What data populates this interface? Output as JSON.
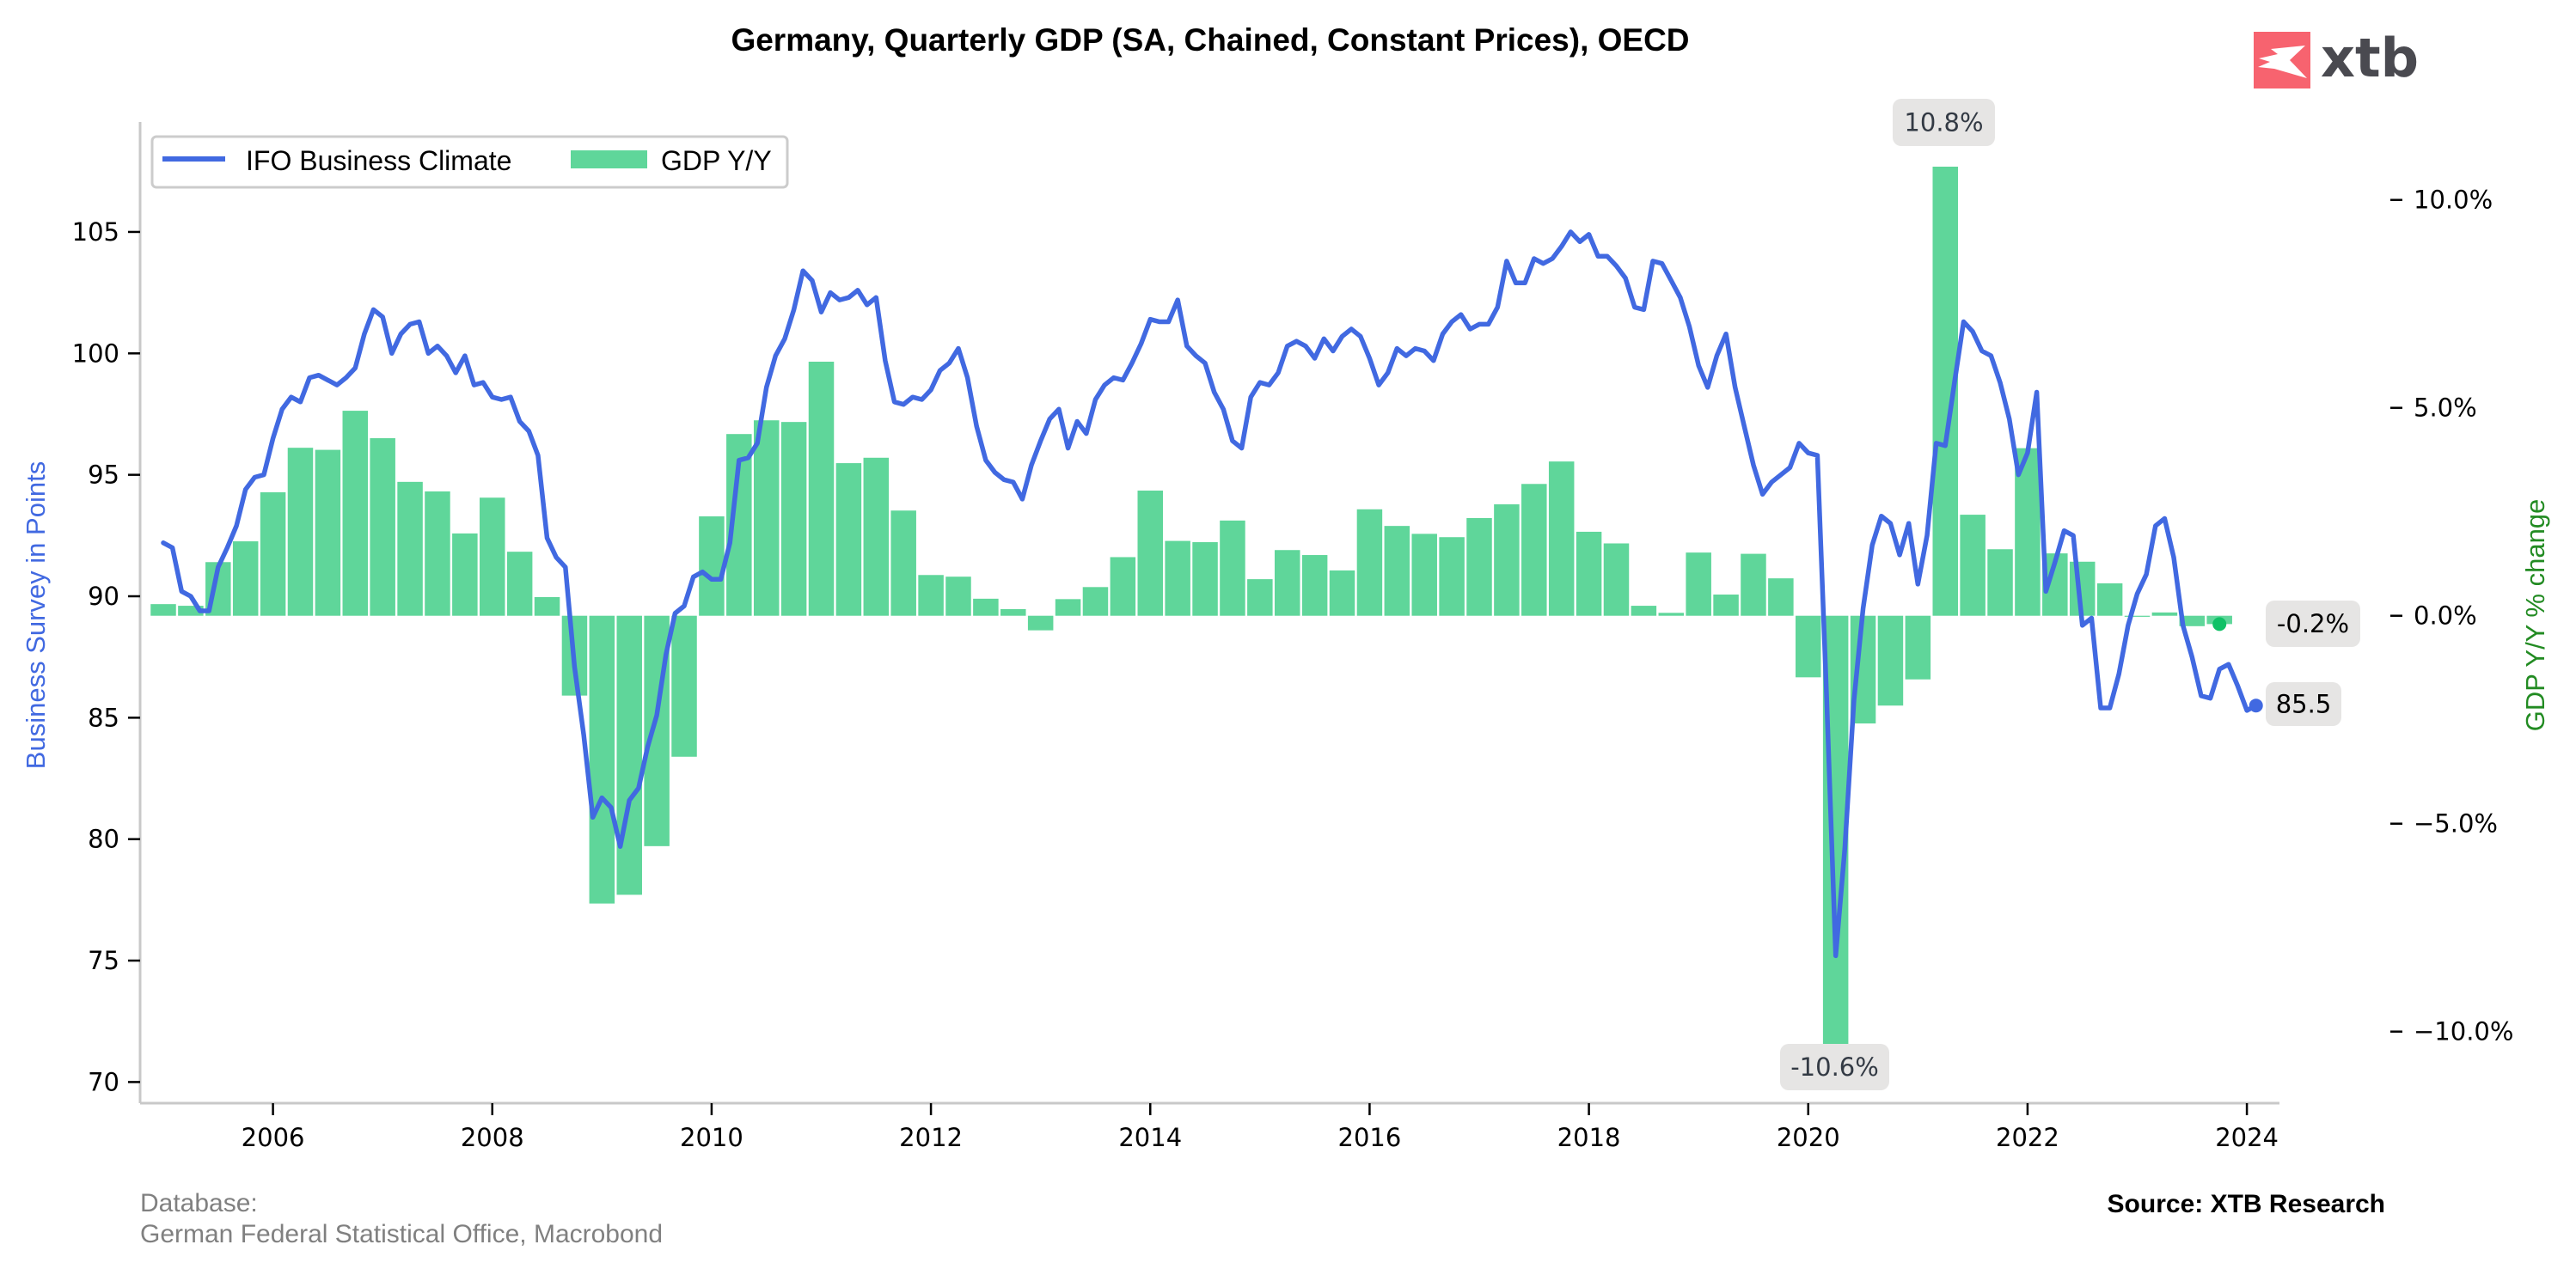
{
  "header": {
    "title": "Germany, Quarterly GDP (SA, Chained, Constant Prices), OECD",
    "logo_text": "xtb"
  },
  "footer": {
    "database_label": "Database:",
    "database_sources": "German Federal Statistical Office, Macrobond",
    "source": "Source: XTB Research"
  },
  "colors": {
    "ifo_line": "#4169e1",
    "gdp_bars": "#5fd69a",
    "gdp_last_dot": "#0fc166",
    "right_axis_title": "#228b22",
    "logo_red": "#f7636f",
    "annotation_bg": "#e6e5e4"
  },
  "chart_data": {
    "type": "bar+line",
    "title": "Germany, Quarterly GDP (SA, Chained, Constant Prices), OECD",
    "legend": {
      "placement": "top-left",
      "entries": [
        {
          "label": "IFO Business Climate",
          "kind": "line"
        },
        {
          "label": "GDP Y/Y",
          "kind": "bar"
        }
      ]
    },
    "xaxis": {
      "tick_labels": [
        "2006",
        "2008",
        "2010",
        "2012",
        "2014",
        "2016",
        "2018",
        "2020",
        "2022",
        "2024"
      ],
      "tick_years": [
        2006,
        2008,
        2010,
        2012,
        2014,
        2016,
        2018,
        2020,
        2022,
        2024
      ],
      "range": [
        2004.9,
        2024.3
      ]
    },
    "yaxis_left": {
      "label": "Business Survey in Points",
      "ticks": [
        70,
        75,
        80,
        85,
        90,
        95,
        100,
        105
      ],
      "tick_labels": [
        "70",
        "75",
        "80",
        "85",
        "90",
        "95",
        "100",
        "105"
      ],
      "range": [
        69.5,
        109
      ]
    },
    "yaxis_right": {
      "label": "GDP Y/Y % change",
      "ticks": [
        -10,
        -5,
        0,
        5,
        10
      ],
      "tick_labels": [
        "−10.0%",
        "−5.0%",
        "0.0%",
        "5.0%",
        "10.0%"
      ],
      "range": [
        -11.8,
        12.3
      ]
    },
    "grid": false,
    "series": [
      {
        "name": "GDP Y/Y",
        "type": "bar",
        "axis": "right",
        "unit": "%",
        "start": "2005Q1",
        "frequency": "quarterly",
        "values": [
          0.28,
          0.24,
          1.29,
          1.79,
          2.97,
          4.04,
          3.99,
          4.93,
          4.27,
          3.22,
          2.99,
          1.98,
          2.84,
          1.54,
          0.45,
          -1.92,
          -6.92,
          -6.71,
          -5.54,
          -3.39,
          2.39,
          4.37,
          4.7,
          4.66,
          6.11,
          3.67,
          3.8,
          2.53,
          0.98,
          0.94,
          0.41,
          0.16,
          -0.35,
          0.4,
          0.69,
          1.41,
          3.01,
          1.8,
          1.77,
          2.29,
          0.88,
          1.58,
          1.46,
          1.09,
          2.56,
          2.16,
          1.97,
          1.89,
          2.35,
          2.68,
          3.17,
          3.71,
          2.02,
          1.74,
          0.24,
          0.07,
          1.52,
          0.51,
          1.49,
          0.9,
          -1.48,
          -10.6,
          -2.59,
          -2.16,
          -1.53,
          10.8,
          2.43,
          1.6,
          4.03,
          1.5,
          1.3,
          0.78,
          -0.02,
          0.08,
          -0.25,
          -0.2
        ]
      },
      {
        "name": "IFO Business Climate",
        "type": "line",
        "axis": "left",
        "unit": "points",
        "start": "2005-01",
        "frequency": "monthly",
        "values": [
          92.2,
          92.0,
          90.2,
          90.0,
          89.4,
          89.4,
          91.2,
          92.0,
          92.9,
          94.4,
          94.9,
          95.0,
          96.5,
          97.7,
          98.2,
          98.0,
          99.0,
          99.1,
          98.9,
          98.7,
          99.0,
          99.4,
          100.8,
          101.8,
          101.5,
          100.0,
          100.8,
          101.2,
          101.3,
          100.0,
          100.3,
          99.9,
          99.2,
          99.9,
          98.7,
          98.8,
          98.2,
          98.1,
          98.2,
          97.2,
          96.8,
          95.8,
          92.4,
          91.6,
          91.2,
          87.1,
          84.3,
          80.9,
          81.7,
          81.3,
          79.7,
          81.6,
          82.1,
          83.8,
          85.1,
          87.6,
          89.3,
          89.6,
          90.8,
          91.0,
          90.7,
          90.7,
          92.2,
          95.6,
          95.7,
          96.3,
          98.6,
          99.9,
          100.6,
          101.8,
          103.4,
          103.0,
          101.7,
          102.5,
          102.2,
          102.3,
          102.6,
          102.0,
          102.3,
          99.7,
          98.0,
          97.9,
          98.2,
          98.1,
          98.5,
          99.3,
          99.6,
          100.2,
          99.0,
          97.0,
          95.6,
          95.1,
          94.8,
          94.7,
          94.0,
          95.4,
          96.4,
          97.3,
          97.7,
          96.1,
          97.2,
          96.7,
          98.1,
          98.7,
          99.0,
          98.9,
          99.6,
          100.4,
          101.4,
          101.3,
          101.3,
          102.2,
          100.3,
          99.9,
          99.6,
          98.4,
          97.7,
          96.4,
          96.1,
          98.2,
          98.8,
          98.7,
          99.2,
          100.3,
          100.5,
          100.3,
          99.8,
          100.6,
          100.1,
          100.7,
          101.0,
          100.7,
          99.8,
          98.7,
          99.2,
          100.2,
          99.9,
          100.2,
          100.1,
          99.7,
          100.8,
          101.3,
          101.6,
          101.0,
          101.2,
          101.2,
          101.9,
          103.8,
          102.9,
          102.9,
          103.9,
          103.7,
          103.9,
          104.4,
          105.0,
          104.6,
          104.9,
          104.0,
          104.0,
          103.6,
          103.1,
          101.9,
          101.8,
          103.8,
          103.7,
          103.0,
          102.3,
          101.1,
          99.5,
          98.6,
          99.9,
          100.8,
          98.6,
          97.0,
          95.4,
          94.2,
          94.7,
          95.0,
          95.3,
          96.3,
          95.9,
          95.8,
          86.0,
          75.2,
          79.6,
          85.7,
          89.5,
          92.1,
          93.3,
          93.0,
          91.7,
          93.0,
          90.5,
          92.5,
          96.3,
          96.2,
          98.8,
          101.3,
          100.9,
          100.1,
          99.9,
          98.8,
          97.3,
          95.0,
          95.9,
          98.4,
          90.2,
          91.4,
          92.7,
          92.5,
          88.8,
          89.1,
          85.4,
          85.4,
          86.8,
          88.8,
          90.1,
          90.9,
          92.9,
          93.2,
          91.6,
          88.8,
          87.5,
          85.9,
          85.8,
          87.0,
          87.2,
          86.3,
          85.3,
          85.5
        ]
      }
    ],
    "annotations": [
      {
        "target": "GDP Y/Y max",
        "period": "2021Q2",
        "text": "10.8%"
      },
      {
        "target": "GDP Y/Y min",
        "period": "2020Q2",
        "text": "-10.6%"
      },
      {
        "target": "GDP Y/Y last",
        "period": "2023Q4",
        "text": "-0.2%"
      },
      {
        "target": "IFO last",
        "period": "2024-02",
        "text": "85.5"
      }
    ]
  }
}
